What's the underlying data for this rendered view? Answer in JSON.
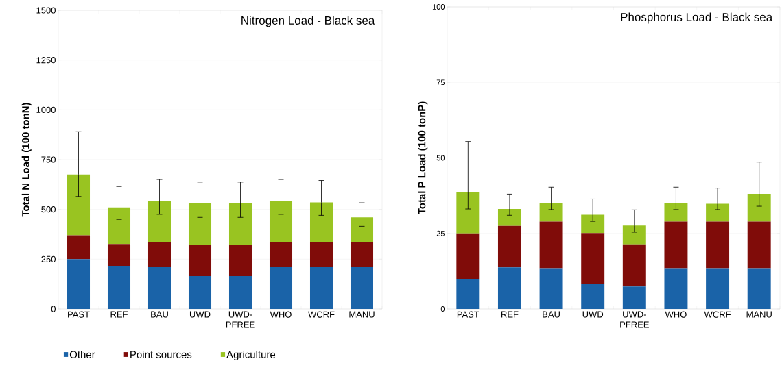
{
  "chart_data": [
    {
      "type": "bar",
      "stacked": true,
      "title": "Nitrogen Load - Black sea",
      "ylabel": "Total N Load (100 tonN)",
      "categories": [
        "PAST",
        "REF",
        "BAU",
        "UWD",
        "UWD-PFREE",
        "WHO",
        "WCRF",
        "MANU"
      ],
      "series": [
        {
          "name": "Other",
          "color": "#1a63a8",
          "values": [
            250,
            213,
            210,
            165,
            165,
            210,
            210,
            210
          ]
        },
        {
          "name": "Point sources",
          "color": "#800c09",
          "values": [
            120,
            113,
            125,
            155,
            155,
            125,
            125,
            125
          ]
        },
        {
          "name": "Agriculture",
          "color": "#99c421",
          "values": [
            305,
            184,
            205,
            210,
            210,
            205,
            200,
            125
          ],
          "errors": [
            [
              565,
              890
            ],
            [
              450,
              615
            ],
            [
              475,
              650
            ],
            [
              460,
              637
            ],
            [
              460,
              637
            ],
            [
              475,
              650
            ],
            [
              470,
              645
            ],
            [
              415,
              533
            ]
          ]
        }
      ],
      "ylim": [
        0,
        1500
      ],
      "yticks": [
        0,
        250,
        500,
        750,
        1000,
        1250,
        1500
      ],
      "grid": "y",
      "legend": "bottom"
    },
    {
      "type": "bar",
      "stacked": true,
      "title": "Phosphorus Load - Black sea",
      "ylabel": "Total P Load (100 tonP)",
      "categories": [
        "PAST",
        "REF",
        "BAU",
        "UWD",
        "UWD-PFREE",
        "WHO",
        "WCRF",
        "MANU"
      ],
      "series": [
        {
          "color": "#1a63a8",
          "values": [
            10,
            13.8,
            13.5,
            8.2,
            7.4,
            13.5,
            13.5,
            13.5
          ]
        },
        {
          "color": "#800c09",
          "values": [
            15,
            13.7,
            15.4,
            16.9,
            14,
            15.4,
            15.4,
            15.4
          ]
        },
        {
          "color": "#99c421",
          "values": [
            13.7,
            5.6,
            6.1,
            6.1,
            6.2,
            6.1,
            5.9,
            9.2
          ],
          "errors": [
            [
              33.1,
              55.4
            ],
            [
              31,
              38
            ],
            [
              32.9,
              40.3
            ],
            [
              29,
              36.4
            ],
            [
              25.4,
              32.8
            ],
            [
              32.9,
              40.3
            ],
            [
              32.9,
              40
            ],
            [
              34,
              48.6
            ]
          ]
        }
      ],
      "ylim": [
        0,
        100
      ],
      "yticks": [
        0,
        25,
        50,
        75,
        100
      ],
      "grid": "y"
    }
  ]
}
